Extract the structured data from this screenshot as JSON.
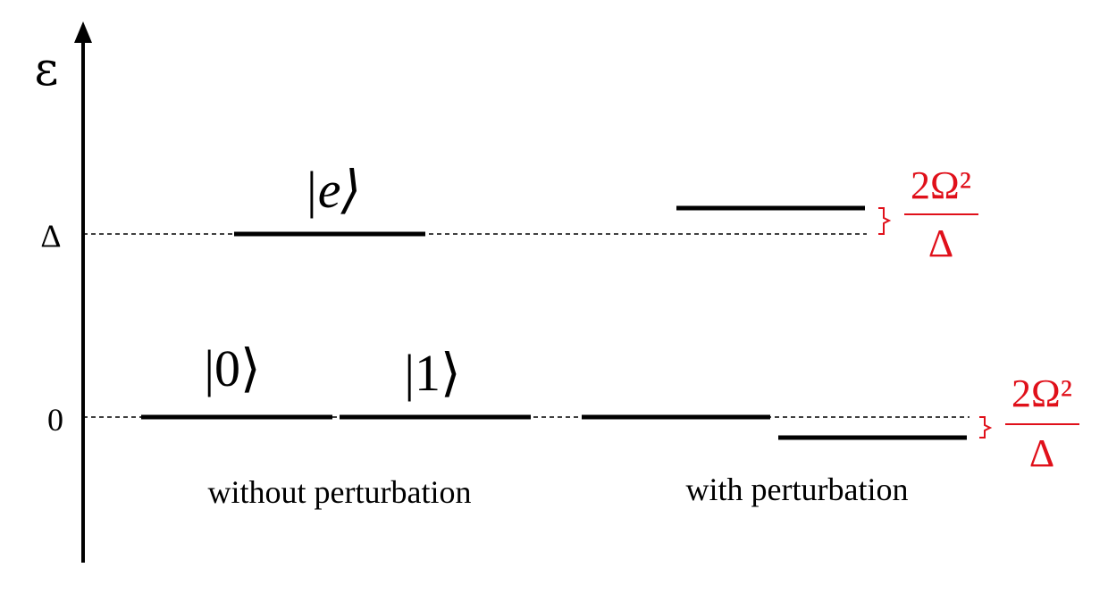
{
  "axis": {
    "symbol": "ε",
    "ticks": [
      {
        "key": "delta",
        "label": "Δ"
      },
      {
        "key": "zero",
        "label": "0"
      }
    ]
  },
  "kets": {
    "excited": "|e⟩",
    "state0": "|0⟩",
    "state1": "|1⟩"
  },
  "sections": {
    "without": "without perturbation",
    "with": "with perturbation"
  },
  "shift_labels": {
    "upper_numerator": "2Ω²",
    "upper_denominator": "Δ",
    "lower_numerator": "2Ω²",
    "lower_denominator": "Δ"
  },
  "colors": {
    "ink": "#000000",
    "shift": "#e0101a"
  }
}
